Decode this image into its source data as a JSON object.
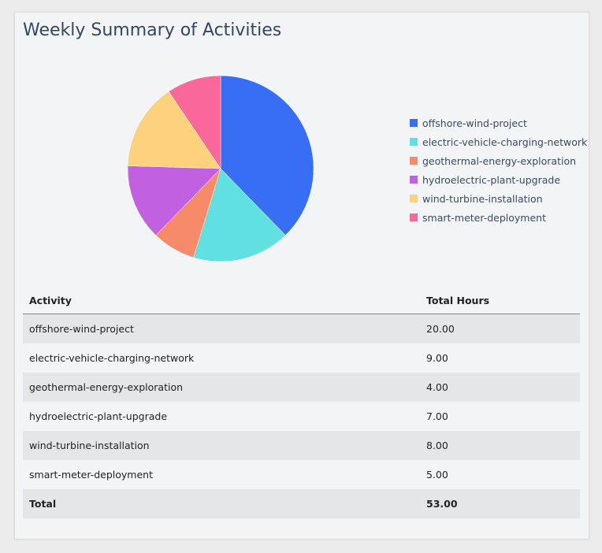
{
  "title": "Weekly Summary of Activities",
  "chart_data": {
    "type": "pie",
    "categories": [
      "offshore-wind-project",
      "electric-vehicle-charging-network",
      "geothermal-energy-exploration",
      "hydroelectric-plant-upgrade",
      "wind-turbine-installation",
      "smart-meter-deployment"
    ],
    "values": [
      20,
      9,
      4,
      7,
      8,
      5
    ],
    "colors": [
      "#376ef3",
      "#60e0e0",
      "#f78a68",
      "#c160e0",
      "#fed27c",
      "#f9679b"
    ],
    "legend_position": "right"
  },
  "table": {
    "headers": [
      "Activity",
      "Total Hours"
    ],
    "rows": [
      [
        "offshore-wind-project",
        "20.00"
      ],
      [
        "electric-vehicle-charging-network",
        "9.00"
      ],
      [
        "geothermal-energy-exploration",
        "4.00"
      ],
      [
        "hydroelectric-plant-upgrade",
        "7.00"
      ],
      [
        "wind-turbine-installation",
        "8.00"
      ],
      [
        "smart-meter-deployment",
        "5.00"
      ]
    ],
    "total": [
      "Total",
      "53.00"
    ]
  }
}
